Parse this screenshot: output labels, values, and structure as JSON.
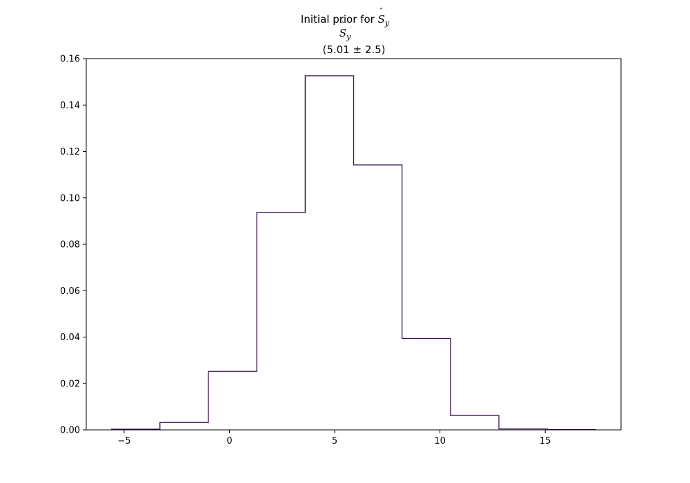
{
  "chart_data": {
    "type": "histogram",
    "title_prefix": "Initial prior for",
    "variable_symbol": "S",
    "variable_subscript": "y",
    "annotation": "(5.01 ± 2.5)",
    "xlim": [
      -6.8,
      18.6
    ],
    "ylim": [
      0,
      0.16
    ],
    "xticks": [
      -5,
      0,
      5,
      10,
      15
    ],
    "yticks": [
      0.0,
      0.02,
      0.04,
      0.06,
      0.08,
      0.1,
      0.12,
      0.14,
      0.16
    ],
    "ytick_labels": [
      "0.00",
      "0.02",
      "0.04",
      "0.06",
      "0.08",
      "0.10",
      "0.12",
      "0.14",
      "0.16"
    ],
    "bin_edges": [
      -5.6,
      -3.3,
      -1.0,
      1.3,
      3.6,
      5.9,
      8.2,
      10.5,
      12.8,
      15.1,
      17.4
    ],
    "values": [
      0.0003,
      0.0032,
      0.0252,
      0.0937,
      0.1526,
      0.1142,
      0.0394,
      0.0062,
      0.0004,
      0.0001
    ],
    "line_color": "#3b0f4f",
    "grid": false
  }
}
